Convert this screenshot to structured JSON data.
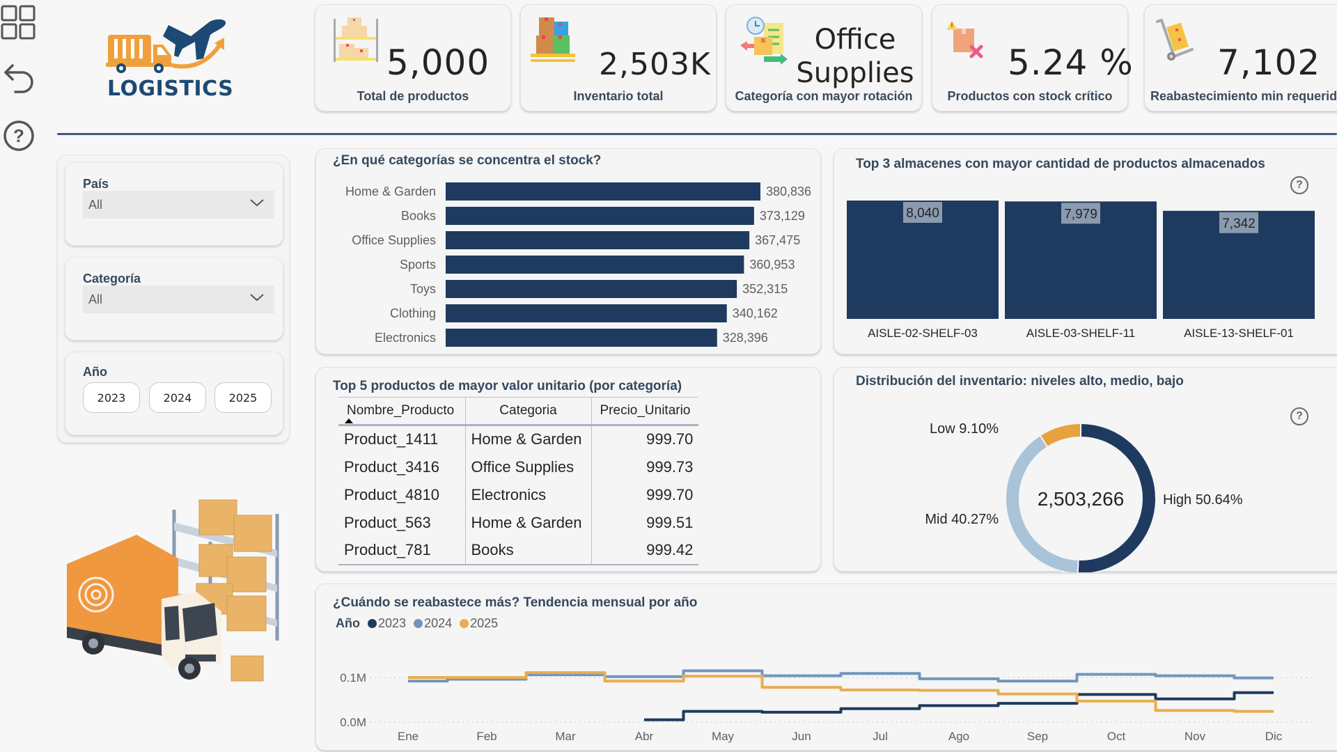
{
  "nav": {
    "icons": [
      "grid-icon",
      "undo-icon",
      "help-icon"
    ]
  },
  "logo": {
    "text": "LOGISTICS",
    "colors": {
      "orange": "#f0a03a",
      "navy": "#1c4a74"
    }
  },
  "kpis": [
    {
      "icon": "warehouse-shelf-icon",
      "value": "5,000",
      "label": "Total de productos"
    },
    {
      "icon": "stacked-boxes-icon",
      "value": "2,503K",
      "label": "Inventario total"
    },
    {
      "icon": "rotation-checklist-icon",
      "value_line1": "Office",
      "value_line2": "Supplies",
      "label": "Categoría con mayor rotación"
    },
    {
      "icon": "critical-stock-box-icon",
      "value": "5.24 %",
      "label": "Productos con stock crítico"
    },
    {
      "icon": "hand-truck-icon",
      "value": "7,102",
      "label": "Reabastecimiento min requerido"
    }
  ],
  "filters": {
    "pais": {
      "label": "País",
      "value": "All"
    },
    "categoria": {
      "label": "Categoría",
      "value": "All"
    },
    "anio": {
      "label": "Año",
      "options": [
        "2023",
        "2024",
        "2025"
      ]
    }
  },
  "colors": {
    "navy": "#1f3a5f",
    "blue_2024": "#7196bd",
    "orange_2025": "#e9ad4f",
    "light_blue": "#a9c3d8",
    "donut_orange": "#e6a23c"
  },
  "chart_data": [
    {
      "type": "bar",
      "orientation": "horizontal",
      "title": "¿En qué categorías se concentra el stock?",
      "categories": [
        "Home & Garden",
        "Books",
        "Office Supplies",
        "Sports",
        "Toys",
        "Clothing",
        "Electronics"
      ],
      "values": [
        380836,
        373129,
        367475,
        360953,
        352315,
        340162,
        328396
      ],
      "value_labels": [
        "380,836",
        "373,129",
        "367,475",
        "360,953",
        "352,315",
        "340,162",
        "328,396"
      ],
      "xlim": [
        0,
        380836
      ],
      "grid": false
    },
    {
      "type": "bar",
      "orientation": "vertical",
      "title": "Top 3 almacenes con mayor cantidad de productos almacenados",
      "categories": [
        "AISLE-02-SHELF-03",
        "AISLE-03-SHELF-11",
        "AISLE-13-SHELF-01"
      ],
      "values": [
        8040,
        7979,
        7342
      ],
      "value_labels": [
        "8,040",
        "7,979",
        "7,342"
      ],
      "ylim": [
        0,
        8040
      ],
      "grid": false
    },
    {
      "type": "table",
      "title": "Top 5 productos de mayor valor unitario (por categoría)",
      "columns": [
        "Nombre_Producto",
        "Categoria",
        "Precio_Unitario"
      ],
      "sort_column": "Nombre_Producto",
      "rows": [
        [
          "Product_1411",
          "Home & Garden",
          "999.70"
        ],
        [
          "Product_3416",
          "Office Supplies",
          "999.73"
        ],
        [
          "Product_4810",
          "Electronics",
          "999.70"
        ],
        [
          "Product_563",
          "Home & Garden",
          "999.51"
        ],
        [
          "Product_781",
          "Books",
          "999.42"
        ]
      ]
    },
    {
      "type": "pie",
      "variant": "donut",
      "title": "Distribución del inventario: niveles alto, medio, bajo",
      "center_label": "2,503,266",
      "slices": [
        {
          "name": "High",
          "value": 50.64,
          "label": "High 50.64%"
        },
        {
          "name": "Mid",
          "value": 40.27,
          "label": "Mid 40.27%"
        },
        {
          "name": "Low",
          "value": 9.1,
          "label": "Low 9.10%"
        }
      ]
    },
    {
      "type": "line",
      "step": true,
      "title": "¿Cuándo se reabastece más? Tendencia mensual por año",
      "legend_title": "Año",
      "legend_position": "top-left",
      "x": [
        "Ene",
        "Feb",
        "Mar",
        "Abr",
        "May",
        "Jun",
        "Jul",
        "Ago",
        "Sep",
        "Oct",
        "Nov",
        "Dic"
      ],
      "y_ticks": [
        "0.0M",
        "0.1M"
      ],
      "ylim": [
        0,
        0.12
      ],
      "grid": true,
      "series": [
        {
          "name": "2023",
          "values": [
            null,
            null,
            null,
            0.005,
            0.024,
            0.022,
            0.03,
            0.037,
            0.042,
            0.062,
            0.052,
            0.066
          ]
        },
        {
          "name": "2024",
          "values": [
            0.092,
            0.096,
            0.106,
            0.102,
            0.115,
            0.104,
            0.109,
            0.097,
            0.092,
            0.107,
            0.104,
            0.099
          ]
        },
        {
          "name": "2025",
          "values": [
            0.1,
            0.1,
            0.111,
            0.092,
            0.103,
            0.078,
            0.072,
            0.071,
            0.063,
            0.047,
            0.026,
            0.024
          ]
        }
      ]
    }
  ]
}
